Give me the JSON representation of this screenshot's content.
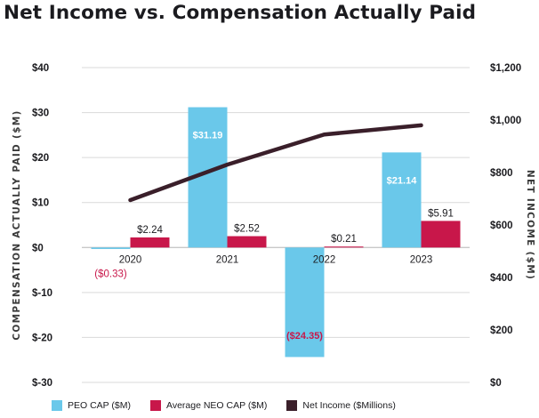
{
  "title": "Net Income vs. Compensation Actually Paid",
  "chart_data": {
    "type": "bar",
    "categories": [
      "2020",
      "2021",
      "2022",
      "2023"
    ],
    "series": [
      {
        "name": "PEO CAP ($M)",
        "type": "bar",
        "axis": "left",
        "color": "#6ac8ea",
        "values": [
          -0.33,
          31.19,
          -24.35,
          21.14
        ],
        "labels": [
          "($0.33)",
          "$31.19",
          "($24.35)",
          "$21.14"
        ]
      },
      {
        "name": "Average NEO CAP ($M)",
        "type": "bar",
        "axis": "left",
        "color": "#c8174a",
        "values": [
          2.24,
          2.52,
          0.21,
          5.91
        ],
        "labels": [
          "$2.24",
          "$2.52",
          "$0.21",
          "$5.91"
        ]
      },
      {
        "name": "Net Income ($Millions)",
        "type": "line",
        "axis": "right",
        "color": "#3a1f2a",
        "values": [
          695,
          830,
          945,
          980
        ]
      }
    ],
    "ylabel": "COMPENSATION ACTUALLY PAID ($M)",
    "y2label": "NET INCOME ($M)",
    "ylim": [
      -30,
      40
    ],
    "y2lim": [
      0,
      1200
    ],
    "yticks": [
      "$40",
      "$30",
      "$20",
      "$10",
      "$0",
      "$-10",
      "$-20",
      "$-30"
    ],
    "y2ticks": [
      "$1,200",
      "$1,000",
      "$800",
      "$600",
      "$400",
      "$200",
      "$0"
    ],
    "grid": true,
    "legend_position": "bottom"
  }
}
